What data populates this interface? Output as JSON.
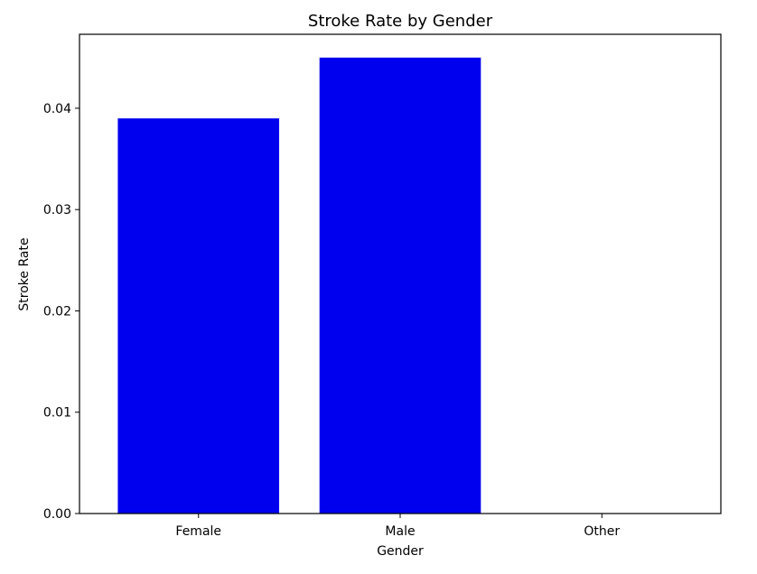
{
  "chart_data": {
    "type": "bar",
    "title": "Stroke Rate by Gender",
    "xlabel": "Gender",
    "ylabel": "Stroke Rate",
    "categories": [
      "Female",
      "Male",
      "Other"
    ],
    "values": [
      0.039,
      0.045,
      0.0
    ],
    "ylim": [
      0,
      0.0473
    ],
    "yticks": [
      0.0,
      0.01,
      0.02,
      0.03,
      0.04
    ],
    "ytick_labels": [
      "0.00",
      "0.01",
      "0.02",
      "0.03",
      "0.04"
    ],
    "bar_color": "#0000ee",
    "grid": false
  }
}
